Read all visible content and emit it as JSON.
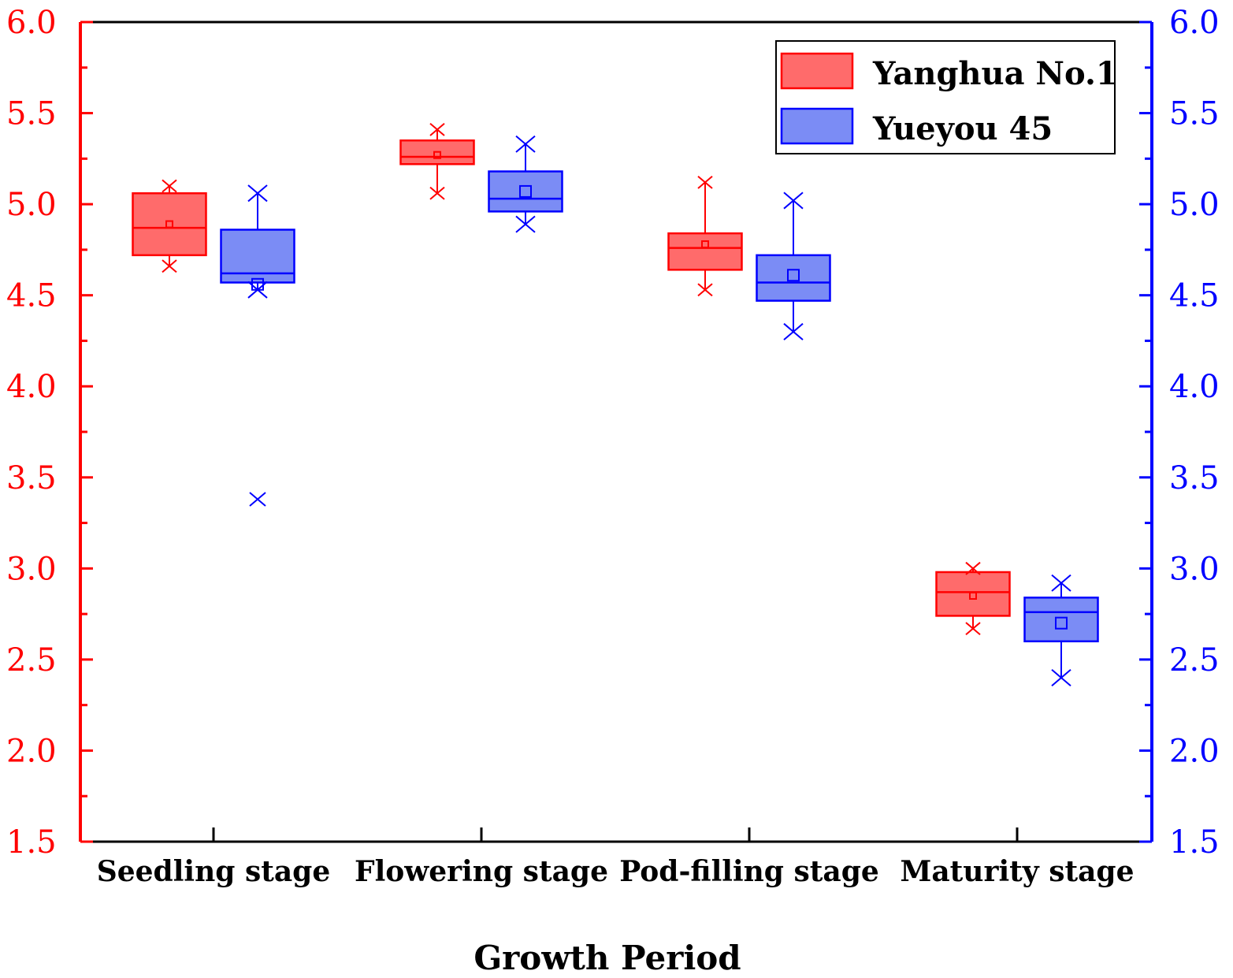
{
  "chart_data": {
    "type": "box",
    "title": "",
    "xlabel": "Growth Period",
    "ylabel": "",
    "ylim": [
      1.5,
      6.0
    ],
    "y_ticks": [
      "6.0",
      "5.5",
      "5.0",
      "4.5",
      "4.0",
      "3.5",
      "3.0",
      "2.5",
      "2.0",
      "1.5"
    ],
    "categories": [
      "Seedling stage",
      "Flowering stage",
      "Pod-filling stage",
      "Maturity stage"
    ],
    "legend_position": "top-right",
    "series": [
      {
        "name": "Yanghua No.1",
        "color": "#ff0000",
        "fill": "#ff6b6b",
        "boxes": [
          {
            "min": 4.66,
            "q1": 4.72,
            "median": 4.87,
            "q3": 5.06,
            "max": 5.1,
            "mean": 4.89,
            "outliers": []
          },
          {
            "min": 5.06,
            "q1": 5.22,
            "median": 5.26,
            "q3": 5.35,
            "max": 5.41,
            "mean": 5.27,
            "outliers": []
          },
          {
            "min": 4.53,
            "q1": 4.64,
            "median": 4.76,
            "q3": 4.84,
            "max": 5.12,
            "mean": 4.78,
            "outliers": []
          },
          {
            "min": 2.67,
            "q1": 2.74,
            "median": 2.87,
            "q3": 2.98,
            "max": 3.0,
            "mean": 2.85,
            "outliers": []
          }
        ]
      },
      {
        "name": "Yueyou 45",
        "color": "#0000ff",
        "fill": "#7b8cf5",
        "boxes": [
          {
            "min": 4.53,
            "q1": 4.57,
            "median": 4.62,
            "q3": 4.86,
            "max": 5.06,
            "mean": 4.56,
            "outliers": [
              3.38
            ]
          },
          {
            "min": 4.89,
            "q1": 4.96,
            "median": 5.03,
            "q3": 5.18,
            "max": 5.33,
            "mean": 5.07,
            "outliers": []
          },
          {
            "min": 4.3,
            "q1": 4.47,
            "median": 4.57,
            "q3": 4.72,
            "max": 5.02,
            "mean": 4.61,
            "outliers": []
          },
          {
            "min": 2.4,
            "q1": 2.6,
            "median": 2.76,
            "q3": 2.84,
            "max": 2.92,
            "mean": 2.7,
            "outliers": []
          }
        ]
      }
    ]
  }
}
